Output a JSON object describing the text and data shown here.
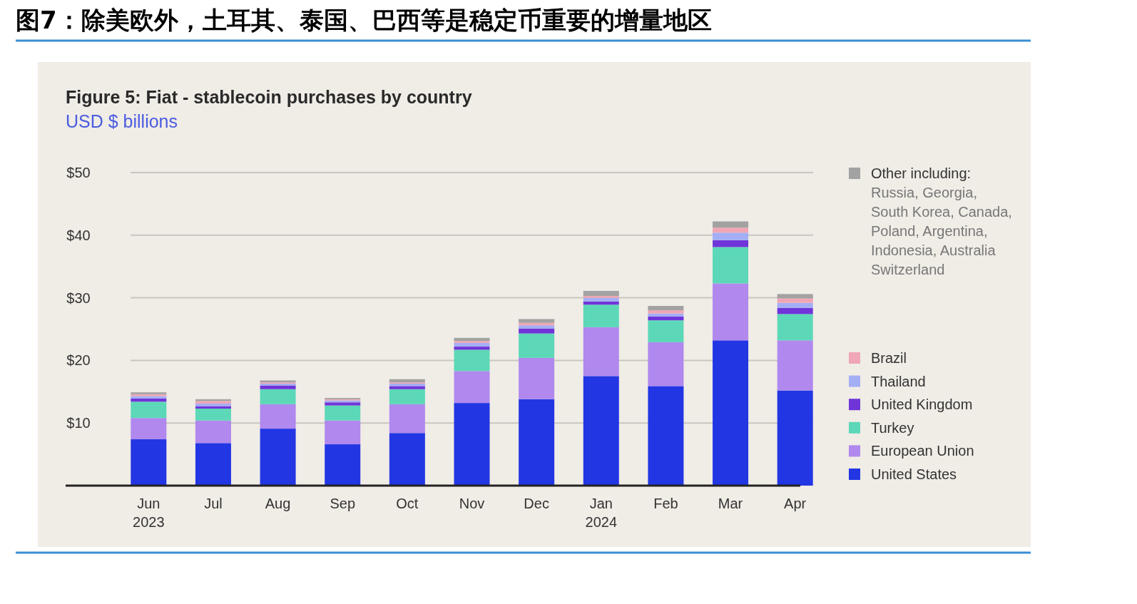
{
  "chart_data": {
    "type": "bar",
    "title": "图7：除美欧外，土耳其、泰国、巴西等是稳定币重要的增量地区",
    "subtitle": "Figure 5: Fiat - stablecoin purchases by country",
    "ylabel": "USD $ billions",
    "categories": [
      "Jun 2023",
      "Jul",
      "Aug",
      "Sep",
      "Oct",
      "Nov",
      "Dec",
      "Jan 2024",
      "Feb",
      "Mar",
      "Apr"
    ],
    "stacked": true,
    "grid": "y",
    "legend": "right",
    "ylim": [
      0,
      50
    ],
    "yticks": [
      {
        "value": 0,
        "label": null
      },
      {
        "value": 10,
        "label": "$10"
      },
      {
        "value": 20,
        "label": "$20"
      },
      {
        "value": 30,
        "label": "$30"
      },
      {
        "value": 40,
        "label": "$40"
      },
      {
        "value": 50,
        "label": "$50"
      }
    ],
    "series": [
      {
        "name": "United States",
        "color": "#2236e4",
        "values": [
          7.4,
          6.8,
          9.1,
          6.6,
          8.4,
          13.2,
          13.8,
          17.5,
          15.9,
          23.2,
          15.2
        ]
      },
      {
        "name": "European Union",
        "color": "#b088ee",
        "values": [
          3.4,
          3.6,
          3.9,
          3.8,
          4.6,
          5.1,
          6.6,
          7.8,
          7.0,
          9.1,
          8.0
        ]
      },
      {
        "name": "Turkey",
        "color": "#5cd8b8",
        "values": [
          2.6,
          1.9,
          2.4,
          2.4,
          2.4,
          3.4,
          3.9,
          3.6,
          3.5,
          5.8,
          4.2
        ]
      },
      {
        "name": "United Kingdom",
        "color": "#6f35d8",
        "values": [
          0.5,
          0.4,
          0.6,
          0.5,
          0.5,
          0.5,
          0.8,
          0.5,
          0.6,
          1.1,
          1.0
        ]
      },
      {
        "name": "Thailand",
        "color": "#a3aef5",
        "values": [
          0.4,
          0.4,
          0.3,
          0.3,
          0.4,
          0.6,
          0.5,
          0.6,
          0.5,
          1.2,
          0.8
        ]
      },
      {
        "name": "Brazil",
        "color": "#f0a6b4",
        "values": [
          0.3,
          0.4,
          0.2,
          0.2,
          0.2,
          0.3,
          0.4,
          0.3,
          0.5,
          0.8,
          0.7
        ]
      },
      {
        "name": "Other including: Russia, Georgia, South Korea, Canada, Poland, Argentina, Indonesia, Australia Switzerland",
        "color": "#a2a2a2",
        "values": [
          0.3,
          0.3,
          0.3,
          0.2,
          0.5,
          0.5,
          0.6,
          0.8,
          0.7,
          1.0,
          0.7
        ]
      }
    ]
  }
}
